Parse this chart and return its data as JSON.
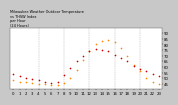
{
  "title": "Milwaukee Weather Outdoor Temperature\nvs THSW Index\nper Hour\n(24 Hours)",
  "bg_color": "#c8c8c8",
  "plot_bg": "#ffffff",
  "temp_color": "#cc0000",
  "thsw_color": "#ff8800",
  "hours": [
    0,
    1,
    2,
    3,
    4,
    5,
    6,
    7,
    8,
    9,
    10,
    11,
    12,
    13,
    14,
    15,
    16,
    17,
    18,
    19,
    20,
    21,
    22,
    23
  ],
  "temp": [
    54,
    52,
    50,
    49,
    48,
    47,
    46,
    47,
    53,
    59,
    65,
    70,
    74,
    76,
    75,
    74,
    71,
    68,
    65,
    61,
    58,
    56,
    54,
    52
  ],
  "thsw": [
    48,
    47,
    47,
    46,
    45,
    45,
    44,
    44,
    46,
    50,
    57,
    66,
    74,
    80,
    83,
    84,
    82,
    77,
    70,
    62,
    56,
    50,
    47,
    45
  ],
  "ylim_min": 40,
  "ylim_max": 95,
  "yticks": [
    45,
    50,
    55,
    60,
    65,
    70,
    75,
    80,
    85,
    90
  ],
  "ytick_labels": [
    "45",
    "50",
    "55",
    "60",
    "65",
    "70",
    "75",
    "80",
    "85",
    "90"
  ],
  "grid_hours": [
    4,
    8,
    12,
    16,
    20
  ],
  "xlabel_fontsize": 2.8,
  "ylabel_fontsize": 2.8,
  "title_fontsize": 2.5,
  "marker_size": 1.5,
  "grid_color": "#aaaaaa",
  "grid_lw": 0.3
}
